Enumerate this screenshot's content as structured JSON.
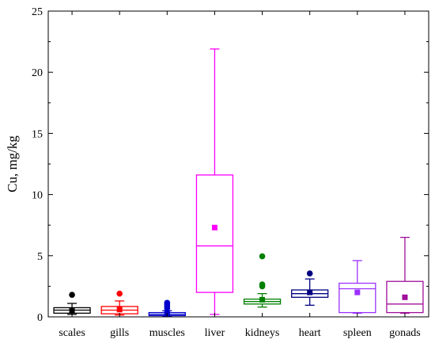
{
  "chart_data": {
    "type": "box",
    "title": "",
    "xlabel": "",
    "ylabel": "Cu, mg/kg",
    "ylim": [
      0,
      25
    ],
    "yticks": [
      0,
      5,
      10,
      15,
      20,
      25
    ],
    "grid": false,
    "legend": "none",
    "categories": [
      "scales",
      "gills",
      "muscles",
      "liver",
      "kidneys",
      "heart",
      "spleen",
      "gonads"
    ],
    "series": [
      {
        "category": "scales",
        "color": "#000000",
        "whisker_low": 0.2,
        "q1": 0.3,
        "median": 0.55,
        "q3": 0.75,
        "whisker_high": 1.1,
        "mean": 0.55,
        "outliers": [
          1.8
        ]
      },
      {
        "category": "gills",
        "color": "#ff0000",
        "whisker_low": 0.15,
        "q1": 0.25,
        "median": 0.55,
        "q3": 0.85,
        "whisker_high": 1.3,
        "mean": 0.6,
        "outliers": [
          1.9
        ]
      },
      {
        "category": "muscles",
        "color": "#0000cc",
        "whisker_low": 0.05,
        "q1": 0.1,
        "median": 0.2,
        "q3": 0.35,
        "whisker_high": 0.5,
        "mean": 0.25,
        "outliers": [
          0.7,
          0.85,
          1.0,
          1.15
        ]
      },
      {
        "category": "liver",
        "color": "#ff00ff",
        "whisker_low": 0.2,
        "q1": 2.0,
        "median": 5.8,
        "q3": 11.6,
        "whisker_high": 21.9,
        "mean": 7.3,
        "outliers": []
      },
      {
        "category": "kidneys",
        "color": "#008000",
        "whisker_low": 0.8,
        "q1": 1.05,
        "median": 1.25,
        "q3": 1.45,
        "whisker_high": 1.9,
        "mean": 1.4,
        "outliers": [
          2.5,
          2.65,
          4.95
        ]
      },
      {
        "category": "heart",
        "color": "#000080",
        "whisker_low": 0.95,
        "q1": 1.6,
        "median": 1.9,
        "q3": 2.2,
        "whisker_high": 3.1,
        "mean": 2.0,
        "outliers": [
          3.55
        ]
      },
      {
        "category": "spleen",
        "color": "#9b30ff",
        "whisker_low": 0.3,
        "q1": 0.35,
        "median": 2.3,
        "q3": 2.75,
        "whisker_high": 4.6,
        "mean": 2.0,
        "outliers": []
      },
      {
        "category": "gonads",
        "color": "#a0109a",
        "whisker_low": 0.3,
        "q1": 0.35,
        "median": 1.05,
        "q3": 2.9,
        "whisker_high": 6.5,
        "mean": 1.6,
        "outliers": []
      }
    ]
  }
}
